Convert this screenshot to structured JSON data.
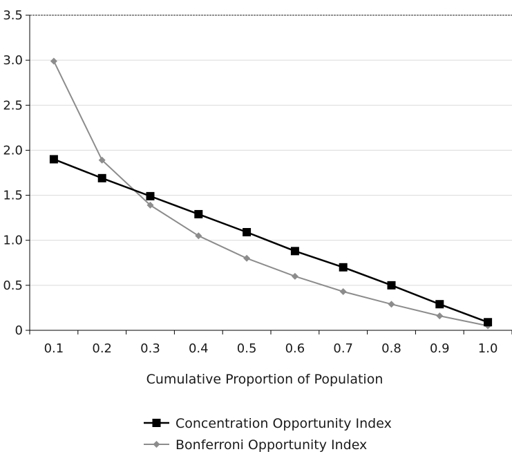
{
  "chart_data": {
    "type": "line",
    "title": "",
    "xlabel": "Cumulative Proportion of Population",
    "ylabel": "",
    "categories": [
      "0.1",
      "0.2",
      "0.3",
      "0.4",
      "0.5",
      "0.6",
      "0.7",
      "0.8",
      "0.9",
      "1.0"
    ],
    "y_ticks": [
      "0",
      "0.5",
      "1.0",
      "1.5",
      "2.0",
      "2.5",
      "3.0",
      "3.5"
    ],
    "ylim": [
      0,
      3.5
    ],
    "grid": true,
    "legend_position": "bottom",
    "series": [
      {
        "name": "Concentration Opportunity Index",
        "marker": "square",
        "color": "#000000",
        "values": [
          1.9,
          1.69,
          1.49,
          1.29,
          1.09,
          0.88,
          0.7,
          0.5,
          0.29,
          0.09
        ]
      },
      {
        "name": "Bonferroni Opportunity Index",
        "marker": "diamond",
        "color": "#8c8c8c",
        "values": [
          2.99,
          1.89,
          1.39,
          1.05,
          0.8,
          0.6,
          0.43,
          0.29,
          0.16,
          0.05
        ]
      }
    ]
  }
}
